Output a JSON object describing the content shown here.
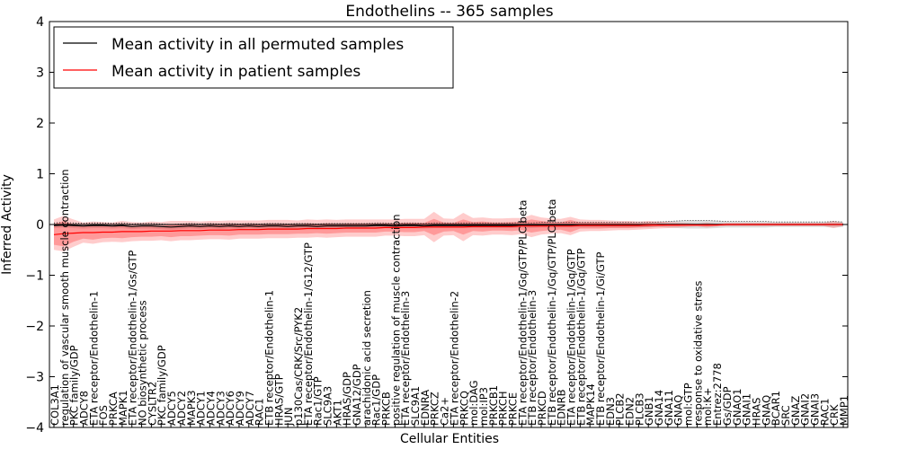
{
  "chart_data": {
    "type": "line",
    "title": "Endothelins -- 365 samples",
    "xlabel": "Cellular Entities",
    "ylabel": "Inferred Activity",
    "ylim": [
      -4,
      4
    ],
    "yticks": [
      -4,
      -3,
      -2,
      -1,
      0,
      1,
      2,
      3,
      4
    ],
    "grid": false,
    "legend_position": "top-left",
    "categories": [
      "COL3A1",
      "regulation of vascular smooth muscle contraction",
      "PKC family/GDP",
      "ADCY8",
      "ETA receptor/Endothelin-1",
      "FOS",
      "PRKCA",
      "MAPK1",
      "ETA receptor/Endothelin-1/Gs/GTP",
      "NO biosynthetic process",
      "CYSLTR2",
      "PKC family/GDP",
      "ADCY5",
      "ADCY2",
      "MAPK3",
      "ADCY1",
      "ADCY4",
      "ADCY3",
      "ADCY6",
      "ADCY9",
      "ADCY7",
      "RAC1",
      "ETB receptor/Endothelin-1",
      "HRAS/GTP",
      "JUN",
      "p130Cas/CRK/Src/PYK2",
      "ETA receptor/Endothelin-1/G12/GTP",
      "Rac1/GTP",
      "SLC9A3",
      "AKT1",
      "HRAS/GDP",
      "GNA12/GDP",
      "arachidonic acid secretion",
      "Rac1/GDP",
      "PRKCB",
      "positive regulation of muscle contraction",
      "ETA receptor/Endothelin-3",
      "SLC9A1",
      "EDNRA",
      "PRKCZ",
      "Ca2+",
      "ETA receptor/Endothelin-2",
      "PRKCQ",
      "mol:DAG",
      "mol:IP3",
      "PRKCB1",
      "PRKCH",
      "PRKCE",
      "ETA receptor/Endothelin-1/Gq/GTP/PLC beta",
      "ETB receptor/Endothelin-3",
      "PRKCD",
      "ETB receptor/Endothelin-1/Gq/GTP/PLC beta",
      "EDNRB",
      "ETA receptor/Endothelin-1/Gq/GTP",
      "ETB receptor/Endothelin-1/Gq/GTP",
      "MAPK14",
      "ETB receptor/Endothelin-1/Gi/GTP",
      "EDN3",
      "PLCB2",
      "EDN2",
      "PLCB3",
      "GNB1",
      "GNA14",
      "GNA11",
      "GNAQ",
      "mol:GTP",
      "response to oxidative stress",
      "mol:K+",
      "Entrez:2778",
      "Gs/GDP",
      "GNAO1",
      "GNAI1",
      "HRAS",
      "GNAQ",
      "BCAR1",
      "SRC",
      "GNAZ",
      "GNAI2",
      "GNAI3",
      "RAC1",
      "CRK",
      "MMP1"
    ],
    "series": [
      {
        "name": "Mean activity in all permuted samples",
        "color": "#000000",
        "values": [
          -0.02,
          -0.01,
          -0.02,
          -0.03,
          -0.02,
          -0.02,
          -0.03,
          -0.02,
          -0.04,
          -0.03,
          -0.03,
          -0.04,
          -0.05,
          -0.04,
          -0.03,
          -0.04,
          -0.03,
          -0.04,
          -0.03,
          -0.04,
          -0.03,
          -0.04,
          -0.03,
          -0.03,
          -0.04,
          -0.03,
          -0.03,
          -0.04,
          -0.03,
          -0.03,
          -0.03,
          -0.03,
          -0.03,
          -0.02,
          -0.02,
          -0.03,
          -0.02,
          -0.02,
          -0.03,
          -0.02,
          -0.02,
          -0.02,
          -0.02,
          -0.02,
          -0.02,
          -0.02,
          -0.02,
          -0.02,
          -0.01,
          -0.02,
          -0.01,
          -0.01,
          -0.01,
          -0.01,
          -0.01,
          -0.01,
          -0.01,
          -0.01,
          -0.01,
          -0.01,
          -0.01,
          -0.01,
          0,
          0,
          0,
          0,
          0,
          0,
          0,
          0,
          0,
          0,
          0,
          0,
          0,
          0,
          0,
          0,
          0,
          0,
          0,
          0
        ],
        "band": [
          0.05,
          0.05,
          0.05,
          0.05,
          0.05,
          0.05,
          0.05,
          0.05,
          0.05,
          0.05,
          0.05,
          0.05,
          0.05,
          0.05,
          0.05,
          0.05,
          0.05,
          0.05,
          0.05,
          0.05,
          0.05,
          0.05,
          0.05,
          0.05,
          0.05,
          0.05,
          0.05,
          0.05,
          0.05,
          0.05,
          0.05,
          0.05,
          0.05,
          0.05,
          0.05,
          0.05,
          0.05,
          0.05,
          0.05,
          0.05,
          0.05,
          0.05,
          0.05,
          0.05,
          0.05,
          0.05,
          0.05,
          0.05,
          0.05,
          0.05,
          0.05,
          0.05,
          0.05,
          0.05,
          0.05,
          0.05,
          0.05,
          0.05,
          0.05,
          0.05,
          0.05,
          0.05,
          0.05,
          0.06,
          0.07,
          0.08,
          0.08,
          0.08,
          0.07,
          0.06,
          0.06,
          0.06,
          0.06,
          0.06,
          0.05,
          0.05,
          0.05,
          0.05,
          0.05,
          0.05,
          0.06,
          0.05
        ]
      },
      {
        "name": "Mean activity in patient samples",
        "color": "#ff0000",
        "values": [
          -0.2,
          -0.18,
          -0.17,
          -0.16,
          -0.16,
          -0.15,
          -0.15,
          -0.14,
          -0.14,
          -0.14,
          -0.13,
          -0.13,
          -0.13,
          -0.12,
          -0.12,
          -0.12,
          -0.11,
          -0.11,
          -0.11,
          -0.1,
          -0.1,
          -0.1,
          -0.09,
          -0.09,
          -0.09,
          -0.09,
          -0.08,
          -0.08,
          -0.08,
          -0.08,
          -0.07,
          -0.07,
          -0.07,
          -0.07,
          -0.06,
          -0.06,
          -0.06,
          -0.06,
          -0.05,
          -0.05,
          -0.05,
          -0.05,
          -0.05,
          -0.04,
          -0.04,
          -0.04,
          -0.04,
          -0.04,
          -0.03,
          -0.03,
          -0.03,
          -0.03,
          -0.03,
          -0.03,
          -0.02,
          -0.02,
          -0.02,
          -0.02,
          -0.02,
          -0.02,
          -0.02,
          -0.01,
          -0.01,
          -0.01,
          -0.01,
          -0.01,
          -0.01,
          -0.01,
          -0.01,
          0,
          0,
          0,
          0,
          0,
          0,
          0,
          0,
          0,
          0,
          0,
          0,
          0
        ],
        "band": [
          0.2,
          0.25,
          0.17,
          0.12,
          0.14,
          0.12,
          0.11,
          0.13,
          0.11,
          0.1,
          0.11,
          0.1,
          0.12,
          0.11,
          0.11,
          0.1,
          0.1,
          0.1,
          0.11,
          0.1,
          0.1,
          0.1,
          0.1,
          0.1,
          0.1,
          0.09,
          0.1,
          0.09,
          0.1,
          0.09,
          0.09,
          0.09,
          0.09,
          0.09,
          0.08,
          0.08,
          0.09,
          0.09,
          0.08,
          0.16,
          0.09,
          0.08,
          0.15,
          0.09,
          0.1,
          0.08,
          0.08,
          0.09,
          0.08,
          0.13,
          0.1,
          0.08,
          0.07,
          0.12,
          0.06,
          0.06,
          0.06,
          0.05,
          0.05,
          0.05,
          0.04,
          0.04,
          0.03,
          0.02,
          0.02,
          0.01,
          0.01,
          0.02,
          0.01,
          0.01,
          0.01,
          0.01,
          0.01,
          0.01,
          0.01,
          0.01,
          0.01,
          0.01,
          0.01,
          0.01,
          0.01,
          0.01
        ],
        "band_outer": [
          0.3,
          0.35,
          0.27,
          0.2,
          0.22,
          0.2,
          0.19,
          0.21,
          0.19,
          0.18,
          0.19,
          0.18,
          0.2,
          0.19,
          0.19,
          0.18,
          0.18,
          0.18,
          0.19,
          0.18,
          0.18,
          0.18,
          0.18,
          0.18,
          0.18,
          0.17,
          0.18,
          0.17,
          0.18,
          0.17,
          0.17,
          0.17,
          0.17,
          0.17,
          0.16,
          0.16,
          0.17,
          0.17,
          0.16,
          0.3,
          0.17,
          0.16,
          0.28,
          0.17,
          0.18,
          0.16,
          0.16,
          0.17,
          0.16,
          0.22,
          0.17,
          0.15,
          0.14,
          0.18,
          0.12,
          0.11,
          0.11,
          0.1,
          0.09,
          0.09,
          0.08,
          0.08,
          0.07,
          0.06,
          0.05,
          0.04,
          0.03,
          0.05,
          0.03,
          0.03,
          0.03,
          0.03,
          0.03,
          0.03,
          0.03,
          0.03,
          0.03,
          0.03,
          0.03,
          0.03,
          0.07,
          0.03
        ]
      }
    ]
  }
}
